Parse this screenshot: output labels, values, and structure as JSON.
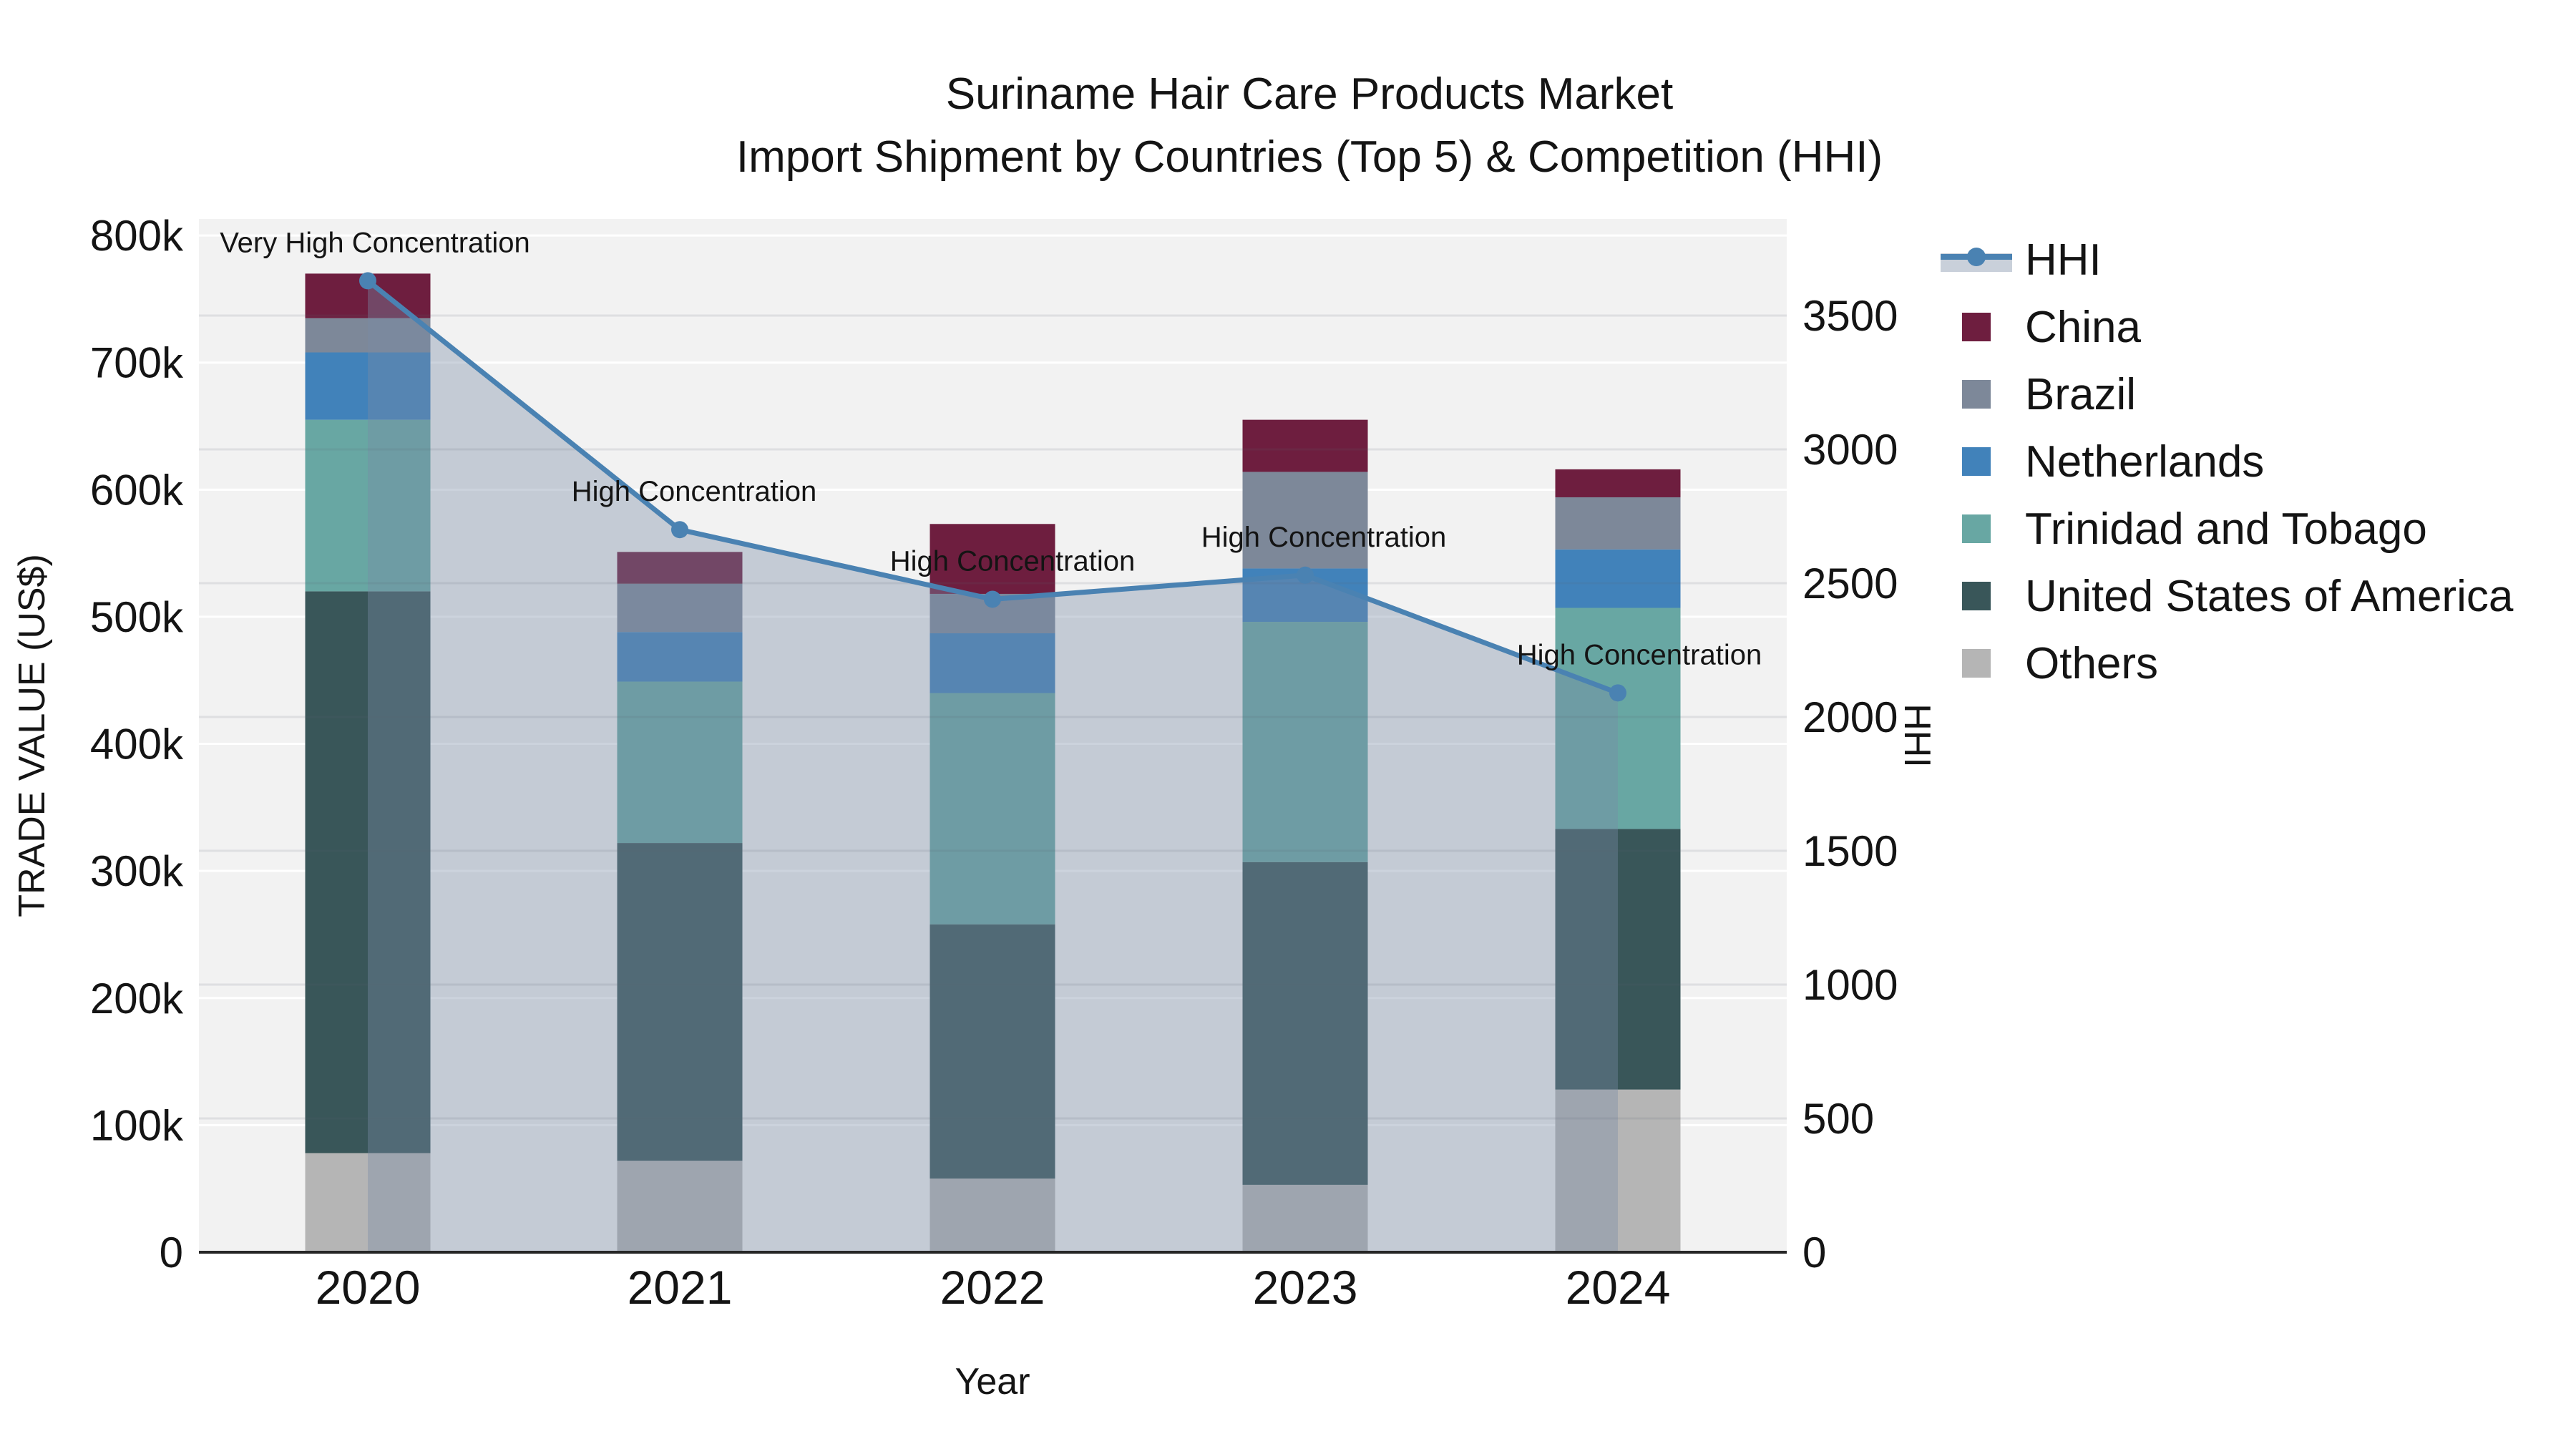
{
  "title": {
    "line1": "Suriname Hair Care Products Market",
    "line2": "Import Shipment by Countries (Top 5) & Competition (HHI)"
  },
  "axes": {
    "x": {
      "label": "Year",
      "ticks": [
        "2020",
        "2021",
        "2022",
        "2023",
        "2024"
      ]
    },
    "y_left": {
      "label": "TRADE VALUE (US$)",
      "tick_labels": [
        "0",
        "100k",
        "200k",
        "300k",
        "400k",
        "500k",
        "600k",
        "700k",
        "800k"
      ],
      "tick_values": [
        0,
        100000,
        200000,
        300000,
        400000,
        500000,
        600000,
        700000,
        800000
      ],
      "range": [
        0,
        813000
      ],
      "grid": true
    },
    "y_right": {
      "label": "HHI",
      "tick_labels": [
        "0",
        "500",
        "1000",
        "1500",
        "2000",
        "2500",
        "3000",
        "3500"
      ],
      "tick_values": [
        0,
        500,
        1000,
        1500,
        2000,
        2500,
        3000,
        3500
      ],
      "range": [
        0,
        3861
      ],
      "grid": true
    }
  },
  "chart_data": {
    "type": "bar+line",
    "title": "Suriname Hair Care Products Market — Import Shipment by Countries (Top 5) & Competition (HHI)",
    "categories": [
      "2020",
      "2021",
      "2022",
      "2023",
      "2024"
    ],
    "stack_unit": "US$",
    "series": [
      {
        "name": "Others",
        "color": "#b5b5b5",
        "values_usd": [
          78000,
          72000,
          58000,
          53000,
          128000
        ]
      },
      {
        "name": "United States of America",
        "color": "#395659",
        "values_usd": [
          442000,
          250000,
          200000,
          254000,
          205000
        ]
      },
      {
        "name": "Trinidad and Tobago",
        "color": "#68a7a3",
        "values_usd": [
          135000,
          127000,
          182000,
          189000,
          174000
        ]
      },
      {
        "name": "Netherlands",
        "color": "#4182ba",
        "values_usd": [
          53000,
          39000,
          47000,
          42000,
          46000
        ]
      },
      {
        "name": "Brazil",
        "color": "#7d8899",
        "values_usd": [
          27000,
          38000,
          31000,
          76000,
          41000
        ]
      },
      {
        "name": "China",
        "color": "#6e1e3f",
        "values_usd": [
          35000,
          25000,
          55000,
          41000,
          22000
        ]
      }
    ],
    "totals_usd": [
      770000,
      551000,
      573000,
      655000,
      616000
    ],
    "line_series": {
      "name": "HHI",
      "color": "#4a82b2",
      "area_fill": "rgba(120,140,165,0.38)",
      "values": [
        3630,
        2700,
        2440,
        2530,
        2090
      ]
    },
    "annotations": [
      "Very High Concentration",
      "High Concentration",
      "High Concentration",
      "High Concentration",
      "High Concentration"
    ],
    "legend_position": "right",
    "plot_background": "#f2f2f2",
    "gridline_color": "#ffffff"
  },
  "legend": {
    "items": [
      {
        "label": "HHI",
        "type": "line",
        "color": "#4a82b2"
      },
      {
        "label": "China",
        "type": "patch",
        "color": "#6e1e3f"
      },
      {
        "label": "Brazil",
        "type": "patch",
        "color": "#7d8899"
      },
      {
        "label": "Netherlands",
        "type": "patch",
        "color": "#4182ba"
      },
      {
        "label": "Trinidad and Tobago",
        "type": "patch",
        "color": "#68a7a3"
      },
      {
        "label": "United States of America",
        "type": "patch",
        "color": "#395659"
      },
      {
        "label": "Others",
        "type": "patch",
        "color": "#b5b5b5"
      }
    ]
  }
}
